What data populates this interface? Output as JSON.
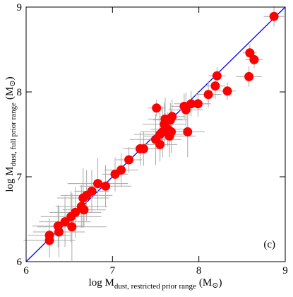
{
  "chart_data": {
    "type": "scatter",
    "xlabel": {
      "main": "log M",
      "sub": "dust, restricted prior range",
      "unit_open": "(M",
      "unit_symbol": "⊙",
      "unit_close": ")"
    },
    "ylabel": {
      "main": "log M",
      "sub": "dust, full prior range",
      "unit_open": "(M",
      "unit_symbol": "⊙",
      "unit_close": ")"
    },
    "annotation": "(c)",
    "xlim": [
      6,
      9
    ],
    "ylim": [
      6,
      9
    ],
    "xticks": [
      6,
      7,
      8,
      9
    ],
    "yticks": [
      6,
      7,
      8,
      9
    ],
    "color": "#ff0000",
    "errorbar_color": "#aaaaaa",
    "line_color": "#0000ff",
    "x": [
      8.87,
      8.59,
      8.64,
      8.58,
      8.21,
      8.19,
      8.33,
      8.11,
      7.91,
      7.99,
      7.83,
      7.85,
      7.69,
      7.67,
      7.61,
      7.6,
      7.64,
      7.58,
      7.66,
      7.55,
      7.5,
      7.55,
      7.87,
      7.51,
      7.68,
      7.36,
      7.32,
      7.19,
      7.1,
      7.03,
      6.92,
      6.83,
      6.76,
      6.7,
      6.66,
      6.67,
      6.64,
      6.57,
      6.52,
      6.45,
      6.37,
      6.53,
      6.38,
      6.27,
      6.27
    ],
    "y": [
      8.89,
      8.46,
      8.38,
      8.18,
      8.19,
      8.07,
      8.01,
      7.97,
      7.86,
      7.86,
      7.83,
      7.79,
      7.71,
      7.67,
      7.68,
      7.62,
      7.56,
      7.53,
      7.48,
      7.5,
      7.44,
      7.38,
      7.53,
      7.81,
      7.53,
      7.33,
      7.33,
      7.2,
      7.08,
      7.03,
      6.89,
      6.92,
      6.83,
      6.78,
      6.75,
      6.61,
      6.65,
      6.58,
      6.53,
      6.47,
      6.42,
      6.41,
      6.35,
      6.31,
      6.25
    ],
    "x_err": [
      0.12,
      0.08,
      0.1,
      0.15,
      0.1,
      0.12,
      0.1,
      0.15,
      0.2,
      0.15,
      0.15,
      0.2,
      0.15,
      0.2,
      0.2,
      0.25,
      0.2,
      0.25,
      0.3,
      0.3,
      0.3,
      0.2,
      0.2,
      0.1,
      0.2,
      0.2,
      0.2,
      0.15,
      0.2,
      0.15,
      0.3,
      0.35,
      0.2,
      0.3,
      0.3,
      0.25,
      0.3,
      0.3,
      0.35,
      0.3,
      0.3,
      0.4,
      0.3,
      0.25,
      0.3
    ],
    "y_err": [
      0.12,
      0.1,
      0.1,
      0.12,
      0.1,
      0.15,
      0.1,
      0.15,
      0.15,
      0.15,
      0.15,
      0.2,
      0.2,
      0.2,
      0.25,
      0.25,
      0.2,
      0.3,
      0.25,
      0.25,
      0.3,
      0.2,
      0.3,
      0.1,
      0.25,
      0.2,
      0.2,
      0.15,
      0.2,
      0.2,
      0.25,
      0.3,
      0.25,
      0.3,
      0.35,
      0.2,
      0.25,
      0.3,
      0.3,
      0.3,
      0.25,
      0.4,
      0.3,
      0.2,
      0.2
    ]
  }
}
